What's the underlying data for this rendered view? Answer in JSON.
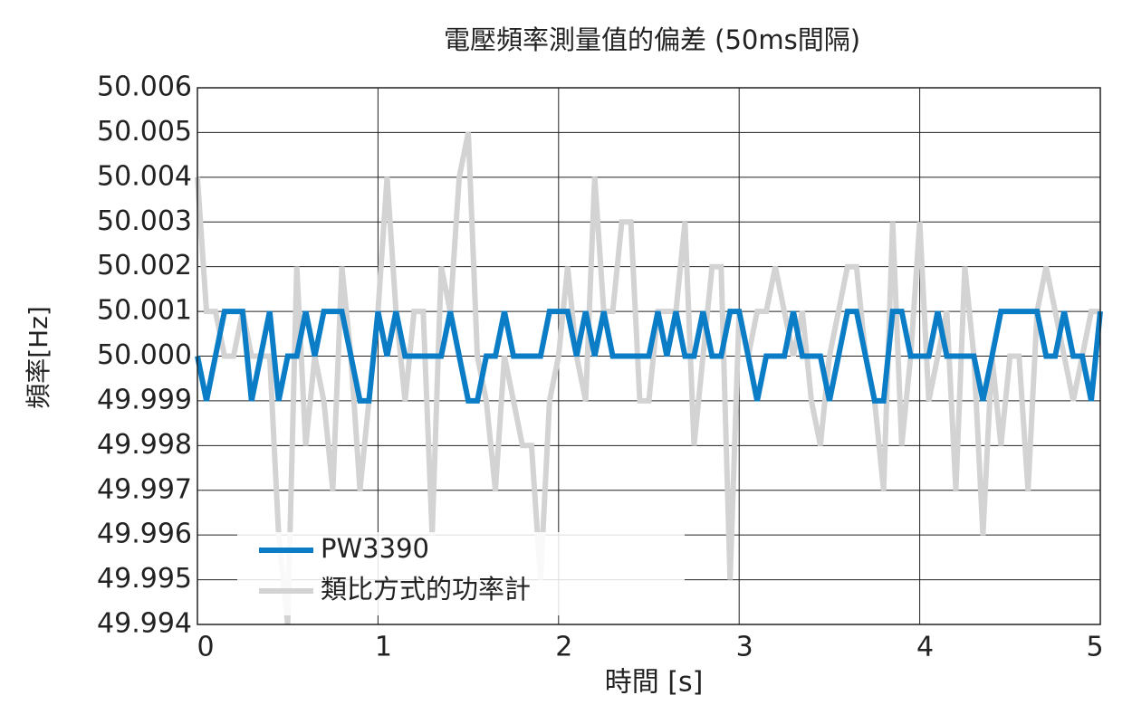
{
  "chart_data": {
    "type": "line",
    "title": "電壓頻率測量值的偏差 (50ms間隔)",
    "x_label": "時間 [s]",
    "y_label": "頻率[Hz]",
    "x": [
      0,
      0.05,
      0.1,
      0.15,
      0.2,
      0.25,
      0.3,
      0.35,
      0.4,
      0.45,
      0.5,
      0.55,
      0.6,
      0.65,
      0.7,
      0.75,
      0.8,
      0.85,
      0.9,
      0.95,
      1,
      1.05,
      1.1,
      1.15,
      1.2,
      1.25,
      1.3,
      1.35,
      1.4,
      1.45,
      1.5,
      1.55,
      1.6,
      1.65,
      1.7,
      1.75,
      1.8,
      1.85,
      1.9,
      1.95,
      2,
      2.05,
      2.1,
      2.15,
      2.2,
      2.25,
      2.3,
      2.35,
      2.4,
      2.45,
      2.5,
      2.55,
      2.6,
      2.65,
      2.7,
      2.75,
      2.8,
      2.85,
      2.9,
      2.95,
      3,
      3.05,
      3.1,
      3.15,
      3.2,
      3.25,
      3.3,
      3.35,
      3.4,
      3.45,
      3.5,
      3.55,
      3.6,
      3.65,
      3.7,
      3.75,
      3.8,
      3.85,
      3.9,
      3.95,
      4,
      4.05,
      4.1,
      4.15,
      4.2,
      4.25,
      4.3,
      4.35,
      4.4,
      4.45,
      4.5,
      4.55,
      4.6,
      4.65,
      4.7,
      4.75,
      4.8,
      4.85,
      4.9,
      4.95,
      5
    ],
    "series": [
      {
        "name": "類比方式的功率計",
        "color": "#d3d3d3",
        "values": [
          50.004,
          50.001,
          50.001,
          50,
          50,
          50.001,
          50,
          50,
          50,
          49.996,
          49.994,
          50.002,
          49.998,
          50,
          49.999,
          49.997,
          50.002,
          50,
          49.997,
          49.999,
          50.001,
          50.004,
          50.001,
          49.999,
          50.001,
          50.001,
          49.996,
          50.002,
          50.001,
          50.004,
          50.005,
          50,
          49.999,
          49.997,
          50,
          49.999,
          49.998,
          49.998,
          49.995,
          49.999,
          50,
          50.002,
          50,
          49.999,
          50.004,
          50.001,
          50.001,
          50.003,
          50.003,
          49.999,
          49.999,
          50.001,
          50.001,
          50.001,
          50.003,
          49.998,
          50,
          50.002,
          50.002,
          49.995,
          50.001,
          50,
          50.001,
          50.001,
          50.002,
          50.001,
          50,
          50.001,
          49.999,
          49.998,
          50,
          50.001,
          50.002,
          50.002,
          50,
          49.999,
          49.997,
          50.003,
          49.998,
          50,
          50.003,
          49.999,
          50,
          50.001,
          49.997,
          50.002,
          50,
          49.996,
          50,
          49.998,
          50,
          50,
          49.997,
          50.001,
          50.002,
          50.001,
          50,
          49.999,
          50,
          50.001,
          50.001
        ]
      },
      {
        "name": "PW3390",
        "color": "#0a7dc6",
        "values": [
          50,
          49.999,
          50,
          50.001,
          50.001,
          50.001,
          49.999,
          50,
          50.001,
          49.999,
          50,
          50,
          50.001,
          50,
          50.001,
          50.001,
          50.001,
          50,
          49.999,
          49.999,
          50.001,
          50,
          50.001,
          50,
          50,
          50,
          50,
          50,
          50.001,
          50,
          49.999,
          49.999,
          50,
          50,
          50.001,
          50,
          50,
          50,
          50,
          50.001,
          50.001,
          50.001,
          50,
          50.001,
          50,
          50.001,
          50,
          50,
          50,
          50,
          50,
          50.001,
          50,
          50.001,
          50,
          50,
          50.001,
          50,
          50,
          50.001,
          50.001,
          50,
          49.999,
          50,
          50,
          50,
          50.001,
          50,
          50,
          50,
          49.999,
          50,
          50.001,
          50.001,
          50,
          49.999,
          49.999,
          50.001,
          50.001,
          50,
          50,
          50,
          50.001,
          50,
          50,
          50,
          50,
          49.999,
          50,
          50.001,
          50.001,
          50.001,
          50.001,
          50.001,
          50,
          50,
          50.001,
          50,
          50,
          49.999,
          50.001
        ]
      }
    ],
    "xlim": [
      0,
      5
    ],
    "xticks": [
      0,
      1,
      2,
      3,
      4,
      5
    ],
    "ylim": [
      49.994,
      50.006
    ],
    "yticks": [
      49.994,
      49.995,
      49.996,
      49.997,
      49.998,
      49.999,
      {
        "value": 50,
        "label": "50.000"
      },
      50.001,
      50.002,
      50.003,
      50.004,
      50.005,
      50.006
    ],
    "grid": true,
    "legend": "lower left"
  }
}
